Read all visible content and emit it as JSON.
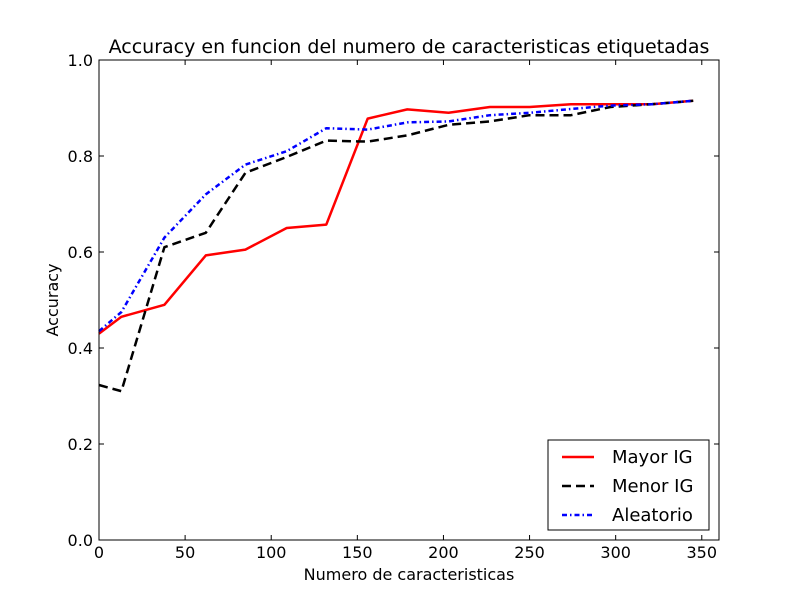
{
  "chart_data": {
    "type": "line",
    "title": "Accuracy en funcion del numero de caracteristicas etiquetadas",
    "xlabel": "Numero de caracteristicas",
    "ylabel": "Accuracy",
    "xlim": [
      0,
      360
    ],
    "ylim": [
      0.0,
      1.0
    ],
    "xticks": [
      0,
      50,
      100,
      150,
      200,
      250,
      300,
      350
    ],
    "xtick_labels": [
      "0",
      "50",
      "100",
      "150",
      "200",
      "250",
      "300",
      "350"
    ],
    "yticks": [
      0.0,
      0.2,
      0.4,
      0.6,
      0.8,
      1.0
    ],
    "ytick_labels": [
      "0.0",
      "0.2",
      "0.4",
      "0.6",
      "0.8",
      "1.0"
    ],
    "grid": false,
    "legend_position": "bottom-right",
    "series": [
      {
        "name": "Mayor IG",
        "color": "#ff0000",
        "style": "solid",
        "x": [
          0,
          13,
          38,
          62,
          85,
          109,
          132,
          156,
          179,
          203,
          227,
          250,
          274,
          297,
          321,
          345
        ],
        "y": [
          0.43,
          0.465,
          0.49,
          0.593,
          0.605,
          0.65,
          0.657,
          0.878,
          0.897,
          0.89,
          0.902,
          0.902,
          0.908,
          0.908,
          0.908,
          0.915
        ]
      },
      {
        "name": "Menor IG",
        "color": "#000000",
        "style": "dashed",
        "x": [
          0,
          13,
          38,
          62,
          85,
          109,
          132,
          156,
          179,
          203,
          227,
          250,
          274,
          297,
          321,
          345
        ],
        "y": [
          0.323,
          0.31,
          0.61,
          0.64,
          0.765,
          0.798,
          0.832,
          0.83,
          0.843,
          0.865,
          0.872,
          0.885,
          0.885,
          0.902,
          0.908,
          0.915
        ]
      },
      {
        "name": "Aleatorio",
        "color": "#0000ff",
        "style": "dashdot",
        "x": [
          0,
          13,
          38,
          62,
          85,
          109,
          132,
          156,
          179,
          203,
          227,
          250,
          274,
          297,
          321,
          345
        ],
        "y": [
          0.435,
          0.475,
          0.63,
          0.72,
          0.782,
          0.81,
          0.858,
          0.855,
          0.87,
          0.872,
          0.885,
          0.89,
          0.898,
          0.905,
          0.908,
          0.915
        ]
      }
    ]
  }
}
